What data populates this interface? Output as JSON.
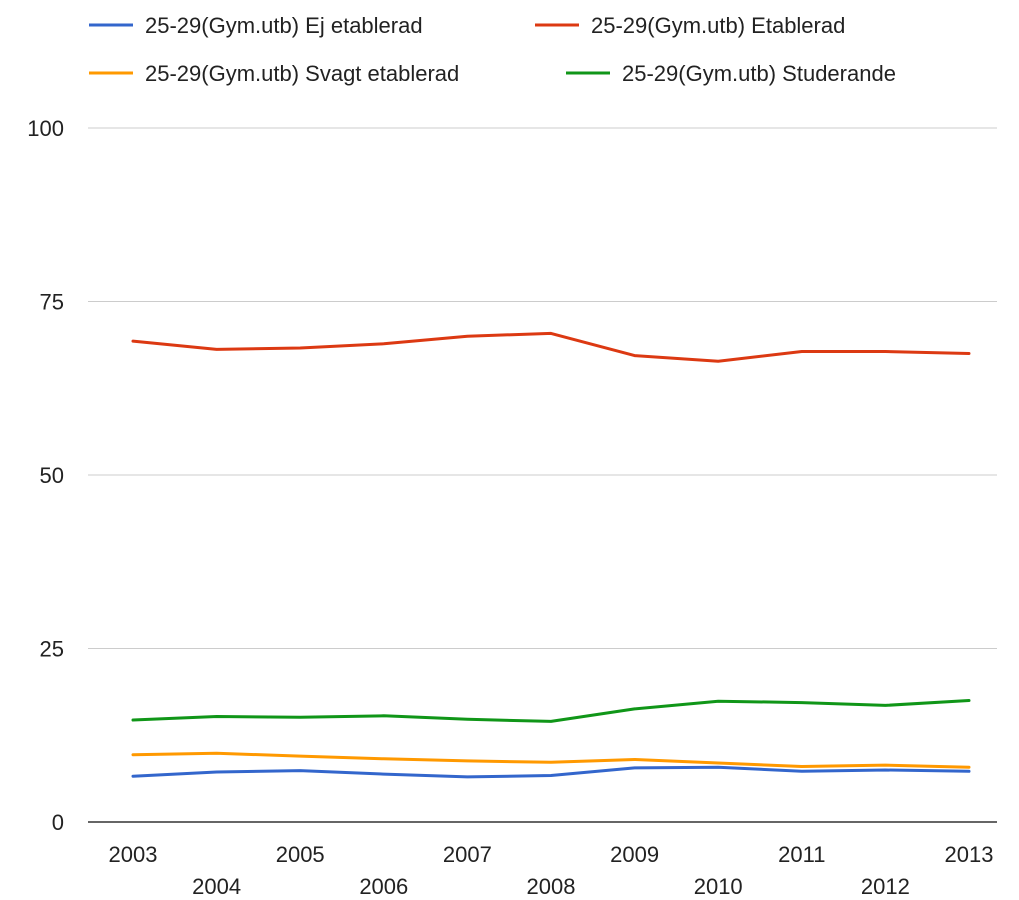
{
  "chart_data": {
    "type": "line",
    "title": "",
    "xlabel": "",
    "ylabel": "",
    "x": [
      2003,
      2004,
      2005,
      2006,
      2007,
      2008,
      2009,
      2010,
      2011,
      2012,
      2013
    ],
    "x_tick_labels": [
      "2003",
      "2004",
      "2005",
      "2006",
      "2007",
      "2008",
      "2009",
      "2010",
      "2011",
      "2012",
      "2013"
    ],
    "y_ticks": [
      0,
      25,
      50,
      75,
      100
    ],
    "y_tick_labels": [
      "0",
      "25",
      "50",
      "75",
      "100"
    ],
    "ylim": [
      0,
      100
    ],
    "grid": true,
    "legend_position": "top",
    "series": [
      {
        "name": "25-29(Gym.utb) Ej etablerad",
        "color": "#3366cc",
        "values": [
          6.6,
          7.2,
          7.4,
          6.9,
          6.5,
          6.7,
          7.8,
          7.9,
          7.3,
          7.5,
          7.3
        ]
      },
      {
        "name": "25-29(Gym.utb) Etablerad",
        "color": "#dc3912",
        "values": [
          69.3,
          68.1,
          68.3,
          68.9,
          70.0,
          70.4,
          67.2,
          66.4,
          67.8,
          67.8,
          67.5
        ]
      },
      {
        "name": "25-29(Gym.utb) Svagt etablerad",
        "color": "#ff9900",
        "values": [
          9.7,
          9.9,
          9.5,
          9.1,
          8.8,
          8.6,
          9.0,
          8.5,
          8.0,
          8.2,
          7.9
        ]
      },
      {
        "name": "25-29(Gym.utb) Studerande",
        "color": "#109618",
        "values": [
          14.7,
          15.2,
          15.1,
          15.3,
          14.8,
          14.5,
          16.3,
          17.4,
          17.2,
          16.8,
          17.5
        ]
      }
    ]
  },
  "colors": {
    "grid": "#cccccc",
    "baseline": "#333333",
    "text": "#222222"
  }
}
